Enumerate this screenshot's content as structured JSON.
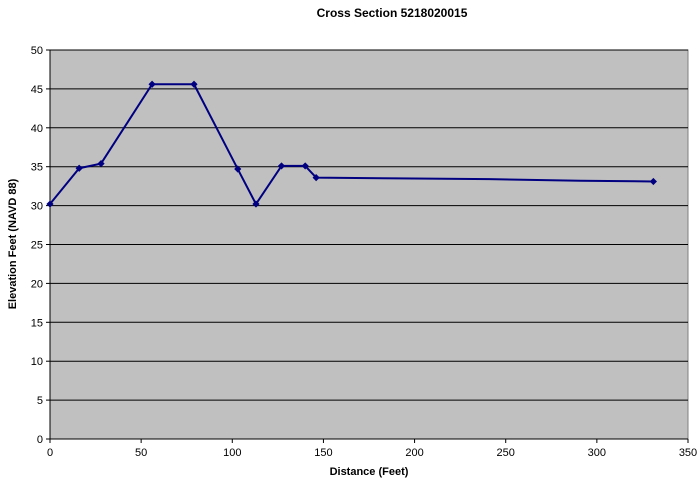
{
  "chart_data": {
    "type": "line",
    "title": "Cross Section 5218020015",
    "xlabel": "Distance (Feet)",
    "ylabel": "Elevation Feet (NAVD 88)",
    "xlim": [
      0,
      350
    ],
    "ylim": [
      0,
      50
    ],
    "x_ticks": [
      0,
      50,
      100,
      150,
      200,
      250,
      300,
      350
    ],
    "y_ticks": [
      0,
      5,
      10,
      15,
      20,
      25,
      30,
      35,
      40,
      45,
      50
    ],
    "grid": "horizontal",
    "legend": "none",
    "colors": {
      "plot_background": "#c0c0c0",
      "series": "#000080",
      "gridline": "#000000"
    },
    "series": [
      {
        "x": [
          0,
          16,
          28,
          56,
          79,
          103,
          113,
          127,
          140,
          146,
          191,
          241,
          291,
          331
        ],
        "y": [
          30.2,
          34.8,
          35.4,
          45.6,
          45.6,
          34.7,
          30.2,
          35.1,
          35.1,
          33.6,
          33.5,
          33.4,
          33.2,
          33.1
        ],
        "marker_x": [
          0,
          16,
          28,
          56,
          79,
          103,
          113,
          127,
          140,
          146,
          331
        ],
        "marker_y": [
          30.2,
          34.8,
          35.4,
          45.6,
          45.6,
          34.7,
          30.2,
          35.1,
          35.1,
          33.6,
          33.1
        ]
      }
    ]
  }
}
